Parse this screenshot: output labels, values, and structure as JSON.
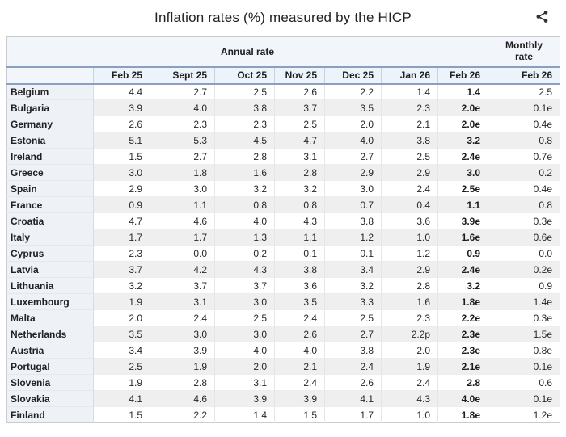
{
  "title": "Inflation rates (%) measured by the HICP",
  "icons": {
    "share": "share-icon"
  },
  "colors": {
    "group_header_bg": "#f2f6fa",
    "column_header_bg": "#edf3fa",
    "label_column_bg": "#eef1f6",
    "stripe_bg": "#efefef",
    "header_rule_blue": "#8aa0c2",
    "outer_border": "#c8ccd1",
    "text": "#202122"
  },
  "chart_data": {
    "type": "table",
    "title": "Inflation rates (%) measured by the HICP",
    "group_headers": {
      "annual": "Annual rate",
      "monthly": "Monthly\nrate"
    },
    "annual_columns": [
      "Feb 25",
      "Sept 25",
      "Oct 25",
      "Nov 25",
      "Dec 25",
      "Jan 26",
      "Feb 26"
    ],
    "monthly_column": "Feb 26",
    "rows": [
      {
        "country": "Belgium",
        "annual": [
          "4.4",
          "2.7",
          "2.5",
          "2.6",
          "2.2",
          "1.4",
          "1.4"
        ],
        "monthly": "2.5"
      },
      {
        "country": "Bulgaria",
        "annual": [
          "3.9",
          "4.0",
          "3.8",
          "3.7",
          "3.5",
          "2.3",
          "2.0e"
        ],
        "monthly": "0.1e"
      },
      {
        "country": "Germany",
        "annual": [
          "2.6",
          "2.3",
          "2.3",
          "2.5",
          "2.0",
          "2.1",
          "2.0e"
        ],
        "monthly": "0.4e"
      },
      {
        "country": "Estonia",
        "annual": [
          "5.1",
          "5.3",
          "4.5",
          "4.7",
          "4.0",
          "3.8",
          "3.2"
        ],
        "monthly": "0.8"
      },
      {
        "country": "Ireland",
        "annual": [
          "1.5",
          "2.7",
          "2.8",
          "3.1",
          "2.7",
          "2.5",
          "2.4e"
        ],
        "monthly": "0.7e"
      },
      {
        "country": "Greece",
        "annual": [
          "3.0",
          "1.8",
          "1.6",
          "2.8",
          "2.9",
          "2.9",
          "3.0"
        ],
        "monthly": "0.2"
      },
      {
        "country": "Spain",
        "annual": [
          "2.9",
          "3.0",
          "3.2",
          "3.2",
          "3.0",
          "2.4",
          "2.5e"
        ],
        "monthly": "0.4e"
      },
      {
        "country": "France",
        "annual": [
          "0.9",
          "1.1",
          "0.8",
          "0.8",
          "0.7",
          "0.4",
          "1.1"
        ],
        "monthly": "0.8"
      },
      {
        "country": "Croatia",
        "annual": [
          "4.7",
          "4.6",
          "4.0",
          "4.3",
          "3.8",
          "3.6",
          "3.9e"
        ],
        "monthly": "0.3e"
      },
      {
        "country": "Italy",
        "annual": [
          "1.7",
          "1.7",
          "1.3",
          "1.1",
          "1.2",
          "1.0",
          "1.6e"
        ],
        "monthly": "0.6e"
      },
      {
        "country": "Cyprus",
        "annual": [
          "2.3",
          "0.0",
          "0.2",
          "0.1",
          "0.1",
          "1.2",
          "0.9"
        ],
        "monthly": "0.0"
      },
      {
        "country": "Latvia",
        "annual": [
          "3.7",
          "4.2",
          "4.3",
          "3.8",
          "3.4",
          "2.9",
          "2.4e"
        ],
        "monthly": "0.2e"
      },
      {
        "country": "Lithuania",
        "annual": [
          "3.2",
          "3.7",
          "3.7",
          "3.6",
          "3.2",
          "2.8",
          "3.2"
        ],
        "monthly": "0.9"
      },
      {
        "country": "Luxembourg",
        "annual": [
          "1.9",
          "3.1",
          "3.0",
          "3.5",
          "3.3",
          "1.6",
          "1.8e"
        ],
        "monthly": "1.4e"
      },
      {
        "country": "Malta",
        "annual": [
          "2.0",
          "2.4",
          "2.5",
          "2.4",
          "2.5",
          "2.3",
          "2.2e"
        ],
        "monthly": "0.3e"
      },
      {
        "country": "Netherlands",
        "annual": [
          "3.5",
          "3.0",
          "3.0",
          "2.6",
          "2.7",
          "2.2p",
          "2.3e"
        ],
        "monthly": "1.5e"
      },
      {
        "country": "Austria",
        "annual": [
          "3.4",
          "3.9",
          "4.0",
          "4.0",
          "3.8",
          "2.0",
          "2.3e"
        ],
        "monthly": "0.8e"
      },
      {
        "country": "Portugal",
        "annual": [
          "2.5",
          "1.9",
          "2.0",
          "2.1",
          "2.4",
          "1.9",
          "2.1e"
        ],
        "monthly": "0.1e"
      },
      {
        "country": "Slovenia",
        "annual": [
          "1.9",
          "2.8",
          "3.1",
          "2.4",
          "2.6",
          "2.4",
          "2.8"
        ],
        "monthly": "0.6"
      },
      {
        "country": "Slovakia",
        "annual": [
          "4.1",
          "4.6",
          "3.9",
          "3.9",
          "4.1",
          "4.3",
          "4.0e"
        ],
        "monthly": "0.1e"
      },
      {
        "country": "Finland",
        "annual": [
          "1.5",
          "2.2",
          "1.4",
          "1.5",
          "1.7",
          "1.0",
          "1.8e"
        ],
        "monthly": "1.2e"
      }
    ]
  }
}
